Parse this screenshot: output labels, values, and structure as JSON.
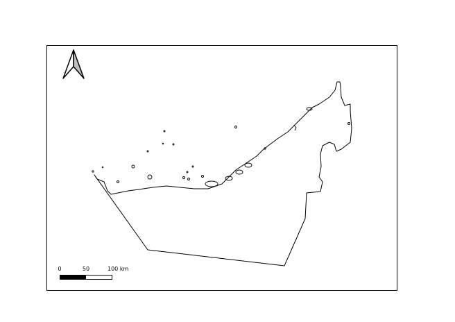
{
  "map": {
    "frame_color": "#000000",
    "background": "#ffffff",
    "outline_color": "#000000",
    "north_arrow": {
      "icon": "north-arrow-icon",
      "fill_left": "#ffffff",
      "fill_right": "#bdbdbd"
    },
    "scale_bar": {
      "labels": [
        "0",
        "50",
        "100 km"
      ],
      "segments": [
        "#000000",
        "#ffffff"
      ]
    }
  }
}
